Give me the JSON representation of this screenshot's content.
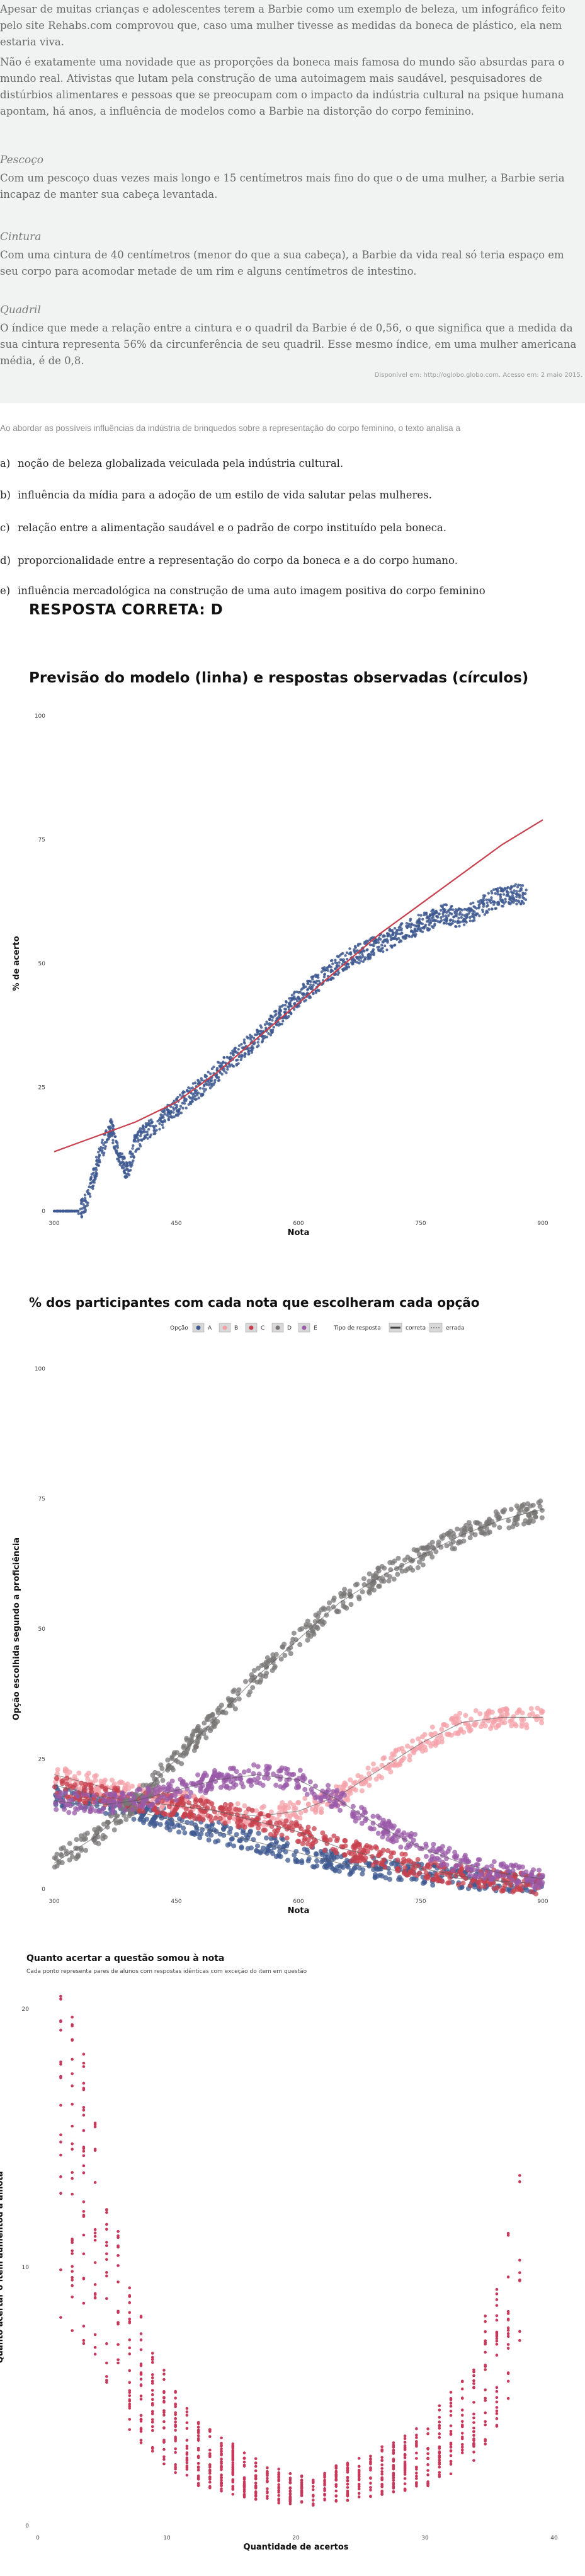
{
  "passage": {
    "p1": "Apesar de muitas crianças e adolescentes terem a Barbie como um exemplo de beleza, um infográfico feito pelo site Rehabs.com comprovou que, caso uma mulher tivesse as medidas da boneca de plástico, ela nem estaria viva.",
    "p2": "Não é exatamente uma novidade que as proporções da boneca mais famosa do mundo são absurdas para o mundo real. Ativistas que lutam pela construção de uma autoimagem mais saudável, pesquisadores de distúrbios alimentares e pessoas que se preocupam com o impacto da indústria cultural na psique humana apontam, há anos, a influência de modelos como a Barbie na distorção do corpo feminino.",
    "h_pescoco": "Pescoço",
    "p_pescoco": "Com um pescoço duas vezes mais longo e 15 centímetros mais fino do que o de uma mulher, a Barbie seria incapaz de manter sua cabeça levantada.",
    "h_cintura": "Cintura",
    "p_cintura": "Com uma cintura de 40 centímetros (menor do que a sua cabeça), a Barbie da vida real só teria espaço em seu corpo para acomodar metade de um rim e alguns centímetros de intestino.",
    "h_quadril": "Quadril",
    "p_quadril": "O índice que mede a relação entre a cintura e o quadril da Barbie é de 0,56, o que significa que a medida da sua cintura representa 56% da circunferência de seu quadril. Esse mesmo índice, em uma mulher americana média, é de 0,8.",
    "credit": "Disponível em: http://oglobo.globo.com. Acesso em: 2 maio 2015."
  },
  "question": {
    "stem": "Ao abordar as possíveis influências da indústria de brinquedos sobre a representação do corpo feminino, o texto analisa a",
    "options": [
      {
        "letter": "a)",
        "text": "noção de beleza globalizada veiculada pela indústria cultural."
      },
      {
        "letter": "b)",
        "text": "influência da mídia para a adoção de um estilo de vida salutar pelas mulheres."
      },
      {
        "letter": "c)",
        "text": "relação entre a alimentação saudável e o padrão de corpo instituído pela boneca."
      },
      {
        "letter": "d)",
        "text": "proporcionalidade entre a representação do corpo da boneca e a do corpo humano."
      },
      {
        "letter": "e)",
        "text": "influência mercadológica na construção de uma auto imagem positiva do corpo feminino"
      }
    ],
    "answer": "RESPOSTA CORRETA: D"
  },
  "colors": {
    "blue": "#3f5a92",
    "red": "#c8404e",
    "pink": "#f4a0a8",
    "purple": "#9a5aa8",
    "gray": "#7a7777",
    "crimson": "#c8385a"
  },
  "chart_data": [
    {
      "type": "scatter",
      "title": "Previsão do modelo (linha) e respostas observadas (círculos)",
      "xlabel": "Nota",
      "ylabel": "% de acerto",
      "xlim": [
        300,
        900
      ],
      "ylim": [
        0,
        100
      ],
      "xticks": [
        "300",
        "450",
        "600",
        "750",
        "900"
      ],
      "yticks": [
        "0",
        "25",
        "50",
        "75",
        "100"
      ],
      "grid": false,
      "series": [
        {
          "kind": "points",
          "color": "#3f5a92",
          "x": [
            300,
            330,
            340,
            350,
            360,
            370,
            380,
            390,
            400,
            420,
            450,
            480,
            500,
            550,
            600,
            650,
            700,
            750,
            780,
            800,
            820,
            840,
            860,
            880
          ],
          "y": [
            0,
            0,
            2,
            8,
            13,
            17,
            11,
            8,
            14,
            17,
            21,
            25,
            28,
            35,
            43,
            50,
            54,
            58,
            60,
            59,
            61,
            63,
            64,
            64
          ]
        },
        {
          "kind": "line",
          "color": "#c8404e",
          "x": [
            300,
            350,
            400,
            450,
            500,
            550,
            600,
            650,
            700,
            750,
            800,
            850,
            900
          ],
          "y": [
            12,
            15,
            18,
            22,
            28,
            35,
            42,
            49,
            56,
            62,
            68,
            74,
            79
          ]
        }
      ]
    },
    {
      "type": "scatter",
      "title": "% dos participantes com cada nota que escolheram cada opção",
      "xlabel": "Nota",
      "ylabel": "Opção escolhida segundo a proficiência",
      "xlim": [
        300,
        900
      ],
      "ylim": [
        0,
        100
      ],
      "xticks": [
        "300",
        "450",
        "600",
        "750",
        "900"
      ],
      "yticks": [
        "0",
        "25",
        "50",
        "75",
        "100"
      ],
      "legend": {
        "title": "Opção",
        "items": [
          "A",
          "B",
          "C",
          "D",
          "E"
        ],
        "type_title": "Tipo de resposta",
        "type_items": [
          "correta",
          "errada"
        ]
      },
      "grid": false,
      "series": [
        {
          "name": "A",
          "color": "#3f5a92",
          "x": [
            300,
            350,
            400,
            450,
            500,
            550,
            600,
            650,
            700,
            750,
            800,
            850,
            900
          ],
          "y": [
            18,
            17,
            15,
            13,
            11,
            9,
            7,
            5,
            4,
            3,
            2,
            1.5,
            1
          ]
        },
        {
          "name": "B",
          "color": "#f4a0a8",
          "x": [
            300,
            350,
            400,
            450,
            500,
            550,
            600,
            650,
            700,
            750,
            800,
            850,
            900
          ],
          "y": [
            22,
            20,
            18,
            17,
            15,
            14,
            15,
            18,
            23,
            28,
            32,
            33,
            33
          ]
        },
        {
          "name": "C",
          "color": "#c8404e",
          "x": [
            300,
            350,
            400,
            450,
            500,
            550,
            600,
            650,
            700,
            750,
            800,
            850,
            900
          ],
          "y": [
            20,
            18,
            17,
            16,
            15,
            13,
            11,
            8,
            6,
            4,
            2.5,
            1.5,
            1
          ]
        },
        {
          "name": "D",
          "color": "#7a7777",
          "x": [
            300,
            350,
            400,
            450,
            500,
            550,
            600,
            650,
            700,
            750,
            800,
            850,
            900
          ],
          "y": [
            5,
            10,
            17,
            25,
            33,
            41,
            48,
            55,
            60,
            64,
            68,
            71,
            73
          ]
        },
        {
          "name": "E",
          "color": "#9a5aa8",
          "x": [
            300,
            350,
            400,
            450,
            500,
            550,
            600,
            650,
            700,
            750,
            800,
            850,
            900
          ],
          "y": [
            17,
            16,
            17,
            19,
            21,
            22,
            21,
            17,
            12,
            8,
            5,
            3,
            2
          ]
        }
      ]
    },
    {
      "type": "scatter",
      "title": "Quanto acertar a questão somou à nota",
      "subtitle": "Cada ponto representa pares de alunos com respostas idênticas com exceção do item em questão",
      "xlabel": "Quantidade de acertos",
      "ylabel": "Quanto acertar o item aumentou a amota",
      "xlim": [
        0,
        45
      ],
      "ylim": [
        0,
        25
      ],
      "xticks": [
        "0",
        "10",
        "20",
        "30",
        "40"
      ],
      "yticks": [
        "0",
        "10",
        "20"
      ],
      "grid": false,
      "series": [
        {
          "kind": "points",
          "color": "#c8385a",
          "x": [
            2,
            3,
            4,
            5,
            6,
            7,
            8,
            9,
            10,
            12,
            14,
            16,
            18,
            20,
            22,
            24,
            26,
            28,
            30,
            32,
            34,
            36,
            38,
            39,
            40,
            41,
            42
          ],
          "y": [
            18,
            17,
            16,
            14,
            12,
            10,
            8,
            7,
            6,
            4.5,
            3.5,
            3,
            2.5,
            2,
            1.8,
            1.8,
            2,
            2.3,
            2.7,
            3,
            3.5,
            4.5,
            5.5,
            7,
            8,
            10,
            12
          ]
        }
      ]
    }
  ]
}
